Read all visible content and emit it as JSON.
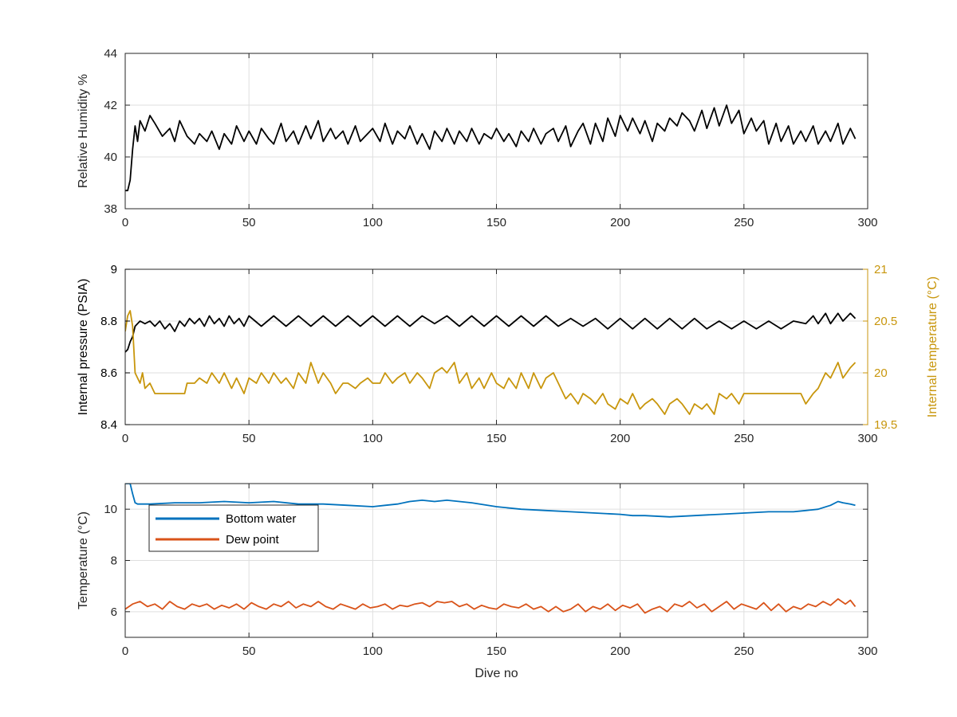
{
  "chart_data": [
    {
      "type": "line",
      "title": "",
      "xlabel": "",
      "ylabel": "Relative Humidity %",
      "xlim": [
        0,
        300
      ],
      "ylim": [
        38,
        44
      ],
      "xticks": [
        0,
        50,
        100,
        150,
        200,
        250,
        300
      ],
      "yticks": [
        38,
        40,
        42,
        44
      ],
      "grid": true,
      "series": [
        {
          "color": "#000000",
          "x": [
            0,
            1,
            2,
            3,
            4,
            5,
            6,
            8,
            10,
            12,
            15,
            18,
            20,
            22,
            25,
            28,
            30,
            33,
            35,
            38,
            40,
            43,
            45,
            48,
            50,
            53,
            55,
            58,
            60,
            63,
            65,
            68,
            70,
            73,
            75,
            78,
            80,
            83,
            85,
            88,
            90,
            93,
            95,
            98,
            100,
            103,
            105,
            108,
            110,
            113,
            115,
            118,
            120,
            123,
            125,
            128,
            130,
            133,
            135,
            138,
            140,
            143,
            145,
            148,
            150,
            153,
            155,
            158,
            160,
            163,
            165,
            168,
            170,
            173,
            175,
            178,
            180,
            183,
            185,
            188,
            190,
            193,
            195,
            198,
            200,
            203,
            205,
            208,
            210,
            213,
            215,
            218,
            220,
            223,
            225,
            228,
            230,
            233,
            235,
            238,
            240,
            243,
            245,
            248,
            250,
            253,
            255,
            258,
            260,
            263,
            265,
            268,
            270,
            273,
            275,
            278,
            280,
            283,
            285,
            288,
            290,
            293,
            295
          ],
          "y": [
            38.7,
            38.7,
            39.1,
            40.3,
            41.2,
            40.6,
            41.4,
            41.0,
            41.6,
            41.3,
            40.8,
            41.1,
            40.6,
            41.4,
            40.8,
            40.5,
            40.9,
            40.6,
            41.0,
            40.3,
            40.9,
            40.5,
            41.2,
            40.6,
            41.0,
            40.5,
            41.1,
            40.7,
            40.5,
            41.3,
            40.6,
            41.0,
            40.5,
            41.2,
            40.7,
            41.4,
            40.6,
            41.1,
            40.7,
            41.0,
            40.5,
            41.2,
            40.6,
            40.9,
            41.1,
            40.6,
            41.3,
            40.5,
            41.0,
            40.7,
            41.2,
            40.5,
            40.9,
            40.3,
            41.0,
            40.6,
            41.1,
            40.5,
            41.0,
            40.6,
            41.1,
            40.5,
            40.9,
            40.7,
            41.1,
            40.6,
            40.9,
            40.4,
            41.0,
            40.6,
            41.1,
            40.5,
            40.9,
            41.1,
            40.6,
            41.2,
            40.4,
            41.0,
            41.3,
            40.5,
            41.3,
            40.6,
            41.5,
            40.8,
            41.6,
            41.0,
            41.5,
            40.9,
            41.4,
            40.6,
            41.3,
            41.0,
            41.5,
            41.2,
            41.7,
            41.4,
            41.0,
            41.8,
            41.1,
            41.9,
            41.2,
            42.0,
            41.3,
            41.8,
            40.9,
            41.5,
            41.0,
            41.4,
            40.5,
            41.3,
            40.6,
            41.2,
            40.5,
            41.0,
            40.6,
            41.2,
            40.5,
            41.0,
            40.6,
            41.3,
            40.5,
            41.1,
            40.7
          ]
        }
      ]
    },
    {
      "type": "line",
      "title": "",
      "xlabel": "",
      "ylabel": "Internal pressure (PSIA)",
      "y2label": "Internal temperature (°C)",
      "xlim": [
        0,
        300
      ],
      "ylim": [
        8.4,
        9.0
      ],
      "y2lim": [
        19.5,
        21.0
      ],
      "xticks": [
        0,
        50,
        100,
        150,
        200,
        250,
        300
      ],
      "yticks": [
        8.4,
        8.6,
        8.8,
        9.0
      ],
      "yticklabels": [
        "8.4",
        "8.6",
        "8.8",
        "9"
      ],
      "y2ticks": [
        19.5,
        20.0,
        20.5,
        21.0
      ],
      "y2ticklabels": [
        "19.5",
        "20",
        "20.5",
        "21"
      ],
      "left_axis_color": "#000000",
      "right_axis_color": "#c8960c",
      "grid": true,
      "series": [
        {
          "axis": "left",
          "color": "#000000",
          "x": [
            0,
            1,
            2,
            3,
            4,
            5,
            6,
            8,
            10,
            12,
            14,
            16,
            18,
            20,
            22,
            24,
            26,
            28,
            30,
            32,
            34,
            36,
            38,
            40,
            42,
            44,
            46,
            48,
            50,
            55,
            60,
            65,
            70,
            75,
            80,
            85,
            90,
            95,
            100,
            105,
            110,
            115,
            120,
            125,
            130,
            135,
            140,
            145,
            150,
            155,
            160,
            165,
            170,
            175,
            180,
            185,
            190,
            195,
            200,
            205,
            210,
            215,
            220,
            225,
            230,
            235,
            240,
            245,
            250,
            255,
            260,
            265,
            270,
            275,
            278,
            280,
            283,
            285,
            288,
            290,
            293,
            295
          ],
          "y": [
            8.68,
            8.69,
            8.72,
            8.74,
            8.78,
            8.79,
            8.8,
            8.79,
            8.8,
            8.78,
            8.8,
            8.77,
            8.79,
            8.76,
            8.8,
            8.78,
            8.81,
            8.79,
            8.81,
            8.78,
            8.82,
            8.79,
            8.81,
            8.78,
            8.82,
            8.79,
            8.81,
            8.78,
            8.82,
            8.78,
            8.82,
            8.78,
            8.82,
            8.78,
            8.82,
            8.78,
            8.82,
            8.78,
            8.82,
            8.78,
            8.82,
            8.78,
            8.82,
            8.79,
            8.82,
            8.78,
            8.82,
            8.78,
            8.82,
            8.78,
            8.82,
            8.78,
            8.82,
            8.78,
            8.81,
            8.78,
            8.81,
            8.77,
            8.81,
            8.77,
            8.81,
            8.77,
            8.81,
            8.77,
            8.81,
            8.77,
            8.8,
            8.77,
            8.8,
            8.77,
            8.8,
            8.77,
            8.8,
            8.79,
            8.82,
            8.79,
            8.83,
            8.79,
            8.83,
            8.8,
            8.83,
            8.81
          ]
        },
        {
          "axis": "right",
          "color": "#c8960c",
          "x": [
            0,
            1,
            2,
            3,
            4,
            5,
            6,
            7,
            8,
            10,
            12,
            15,
            18,
            20,
            22,
            24,
            25,
            28,
            30,
            33,
            35,
            38,
            40,
            43,
            45,
            48,
            50,
            53,
            55,
            58,
            60,
            63,
            65,
            68,
            70,
            73,
            75,
            78,
            80,
            83,
            85,
            88,
            90,
            93,
            95,
            98,
            100,
            103,
            105,
            108,
            110,
            113,
            115,
            118,
            120,
            123,
            125,
            128,
            130,
            133,
            135,
            138,
            140,
            143,
            145,
            148,
            150,
            153,
            155,
            158,
            160,
            163,
            165,
            168,
            170,
            173,
            175,
            178,
            180,
            183,
            185,
            188,
            190,
            193,
            195,
            198,
            200,
            203,
            205,
            208,
            210,
            213,
            215,
            218,
            220,
            223,
            225,
            228,
            230,
            233,
            235,
            238,
            240,
            243,
            245,
            248,
            250,
            253,
            255,
            258,
            260,
            263,
            265,
            268,
            270,
            273,
            275,
            278,
            280,
            283,
            285,
            288,
            290,
            293,
            295
          ],
          "y": [
            20.4,
            20.55,
            20.6,
            20.45,
            20.0,
            19.95,
            19.9,
            20.0,
            19.85,
            19.9,
            19.8,
            19.8,
            19.8,
            19.8,
            19.8,
            19.8,
            19.9,
            19.9,
            19.95,
            19.9,
            20.0,
            19.9,
            20.0,
            19.85,
            19.95,
            19.8,
            19.95,
            19.9,
            20.0,
            19.9,
            20.0,
            19.9,
            19.95,
            19.85,
            20.0,
            19.9,
            20.1,
            19.9,
            20.0,
            19.9,
            19.8,
            19.9,
            19.9,
            19.85,
            19.9,
            19.95,
            19.9,
            19.9,
            20.0,
            19.9,
            19.95,
            20.0,
            19.9,
            20.0,
            19.95,
            19.85,
            20.0,
            20.05,
            20.0,
            20.1,
            19.9,
            20.0,
            19.85,
            19.95,
            19.85,
            20.0,
            19.9,
            19.85,
            19.95,
            19.85,
            20.0,
            19.85,
            20.0,
            19.85,
            19.95,
            20.0,
            19.9,
            19.75,
            19.8,
            19.7,
            19.8,
            19.75,
            19.7,
            19.8,
            19.7,
            19.65,
            19.75,
            19.7,
            19.8,
            19.65,
            19.7,
            19.75,
            19.7,
            19.6,
            19.7,
            19.75,
            19.7,
            19.6,
            19.7,
            19.65,
            19.7,
            19.6,
            19.8,
            19.75,
            19.8,
            19.7,
            19.8,
            19.8,
            19.8,
            19.8,
            19.8,
            19.8,
            19.8,
            19.8,
            19.8,
            19.8,
            19.7,
            19.8,
            19.85,
            20.0,
            19.95,
            20.1,
            19.95,
            20.05,
            20.1
          ]
        }
      ]
    },
    {
      "type": "line",
      "title": "",
      "xlabel": "Dive no",
      "ylabel": "Temperature (°C)",
      "xlim": [
        0,
        300
      ],
      "ylim": [
        5,
        11
      ],
      "xticks": [
        0,
        50,
        100,
        150,
        200,
        250,
        300
      ],
      "yticks": [
        6,
        8,
        10
      ],
      "grid": true,
      "legend": {
        "placement": "upper-left",
        "entries": [
          "Bottom water",
          "Dew point"
        ]
      },
      "series": [
        {
          "name": "Bottom water",
          "color": "#0072bd",
          "x": [
            0,
            2,
            3,
            4,
            5,
            10,
            20,
            30,
            40,
            50,
            60,
            70,
            80,
            90,
            100,
            105,
            110,
            115,
            120,
            125,
            130,
            140,
            150,
            160,
            170,
            180,
            190,
            200,
            205,
            210,
            220,
            230,
            240,
            250,
            260,
            270,
            275,
            280,
            285,
            288,
            290,
            293,
            295
          ],
          "y": [
            11.0,
            11.0,
            10.6,
            10.25,
            10.2,
            10.2,
            10.25,
            10.25,
            10.3,
            10.25,
            10.3,
            10.2,
            10.2,
            10.15,
            10.1,
            10.15,
            10.2,
            10.3,
            10.35,
            10.3,
            10.35,
            10.25,
            10.1,
            10.0,
            9.95,
            9.9,
            9.85,
            9.8,
            9.75,
            9.75,
            9.7,
            9.75,
            9.8,
            9.85,
            9.9,
            9.9,
            9.95,
            10.0,
            10.15,
            10.3,
            10.25,
            10.2,
            10.15
          ]
        },
        {
          "name": "Dew point",
          "color": "#d95319",
          "x": [
            0,
            3,
            6,
            9,
            12,
            15,
            18,
            21,
            24,
            27,
            30,
            33,
            36,
            39,
            42,
            45,
            48,
            51,
            54,
            57,
            60,
            63,
            66,
            69,
            72,
            75,
            78,
            81,
            84,
            87,
            90,
            93,
            96,
            99,
            102,
            105,
            108,
            111,
            114,
            117,
            120,
            123,
            126,
            129,
            132,
            135,
            138,
            141,
            144,
            147,
            150,
            153,
            156,
            159,
            162,
            165,
            168,
            171,
            174,
            177,
            180,
            183,
            186,
            189,
            192,
            195,
            198,
            201,
            204,
            207,
            210,
            213,
            216,
            219,
            222,
            225,
            228,
            231,
            234,
            237,
            240,
            243,
            246,
            249,
            252,
            255,
            258,
            261,
            264,
            267,
            270,
            273,
            276,
            279,
            282,
            285,
            288,
            291,
            293,
            295
          ],
          "y": [
            6.1,
            6.3,
            6.4,
            6.2,
            6.3,
            6.1,
            6.4,
            6.2,
            6.1,
            6.3,
            6.2,
            6.3,
            6.1,
            6.25,
            6.15,
            6.3,
            6.1,
            6.35,
            6.2,
            6.1,
            6.3,
            6.2,
            6.4,
            6.15,
            6.3,
            6.2,
            6.4,
            6.2,
            6.1,
            6.3,
            6.2,
            6.1,
            6.3,
            6.15,
            6.2,
            6.3,
            6.1,
            6.25,
            6.2,
            6.3,
            6.35,
            6.2,
            6.4,
            6.35,
            6.4,
            6.2,
            6.3,
            6.1,
            6.25,
            6.15,
            6.1,
            6.3,
            6.2,
            6.15,
            6.3,
            6.1,
            6.2,
            6.0,
            6.2,
            6.0,
            6.1,
            6.3,
            6.0,
            6.2,
            6.1,
            6.3,
            6.05,
            6.25,
            6.15,
            6.3,
            5.95,
            6.1,
            6.2,
            6.0,
            6.3,
            6.2,
            6.4,
            6.15,
            6.3,
            6.0,
            6.2,
            6.4,
            6.1,
            6.3,
            6.2,
            6.1,
            6.35,
            6.05,
            6.3,
            6.0,
            6.2,
            6.1,
            6.3,
            6.2,
            6.4,
            6.25,
            6.5,
            6.3,
            6.45,
            6.2
          ]
        }
      ]
    }
  ]
}
